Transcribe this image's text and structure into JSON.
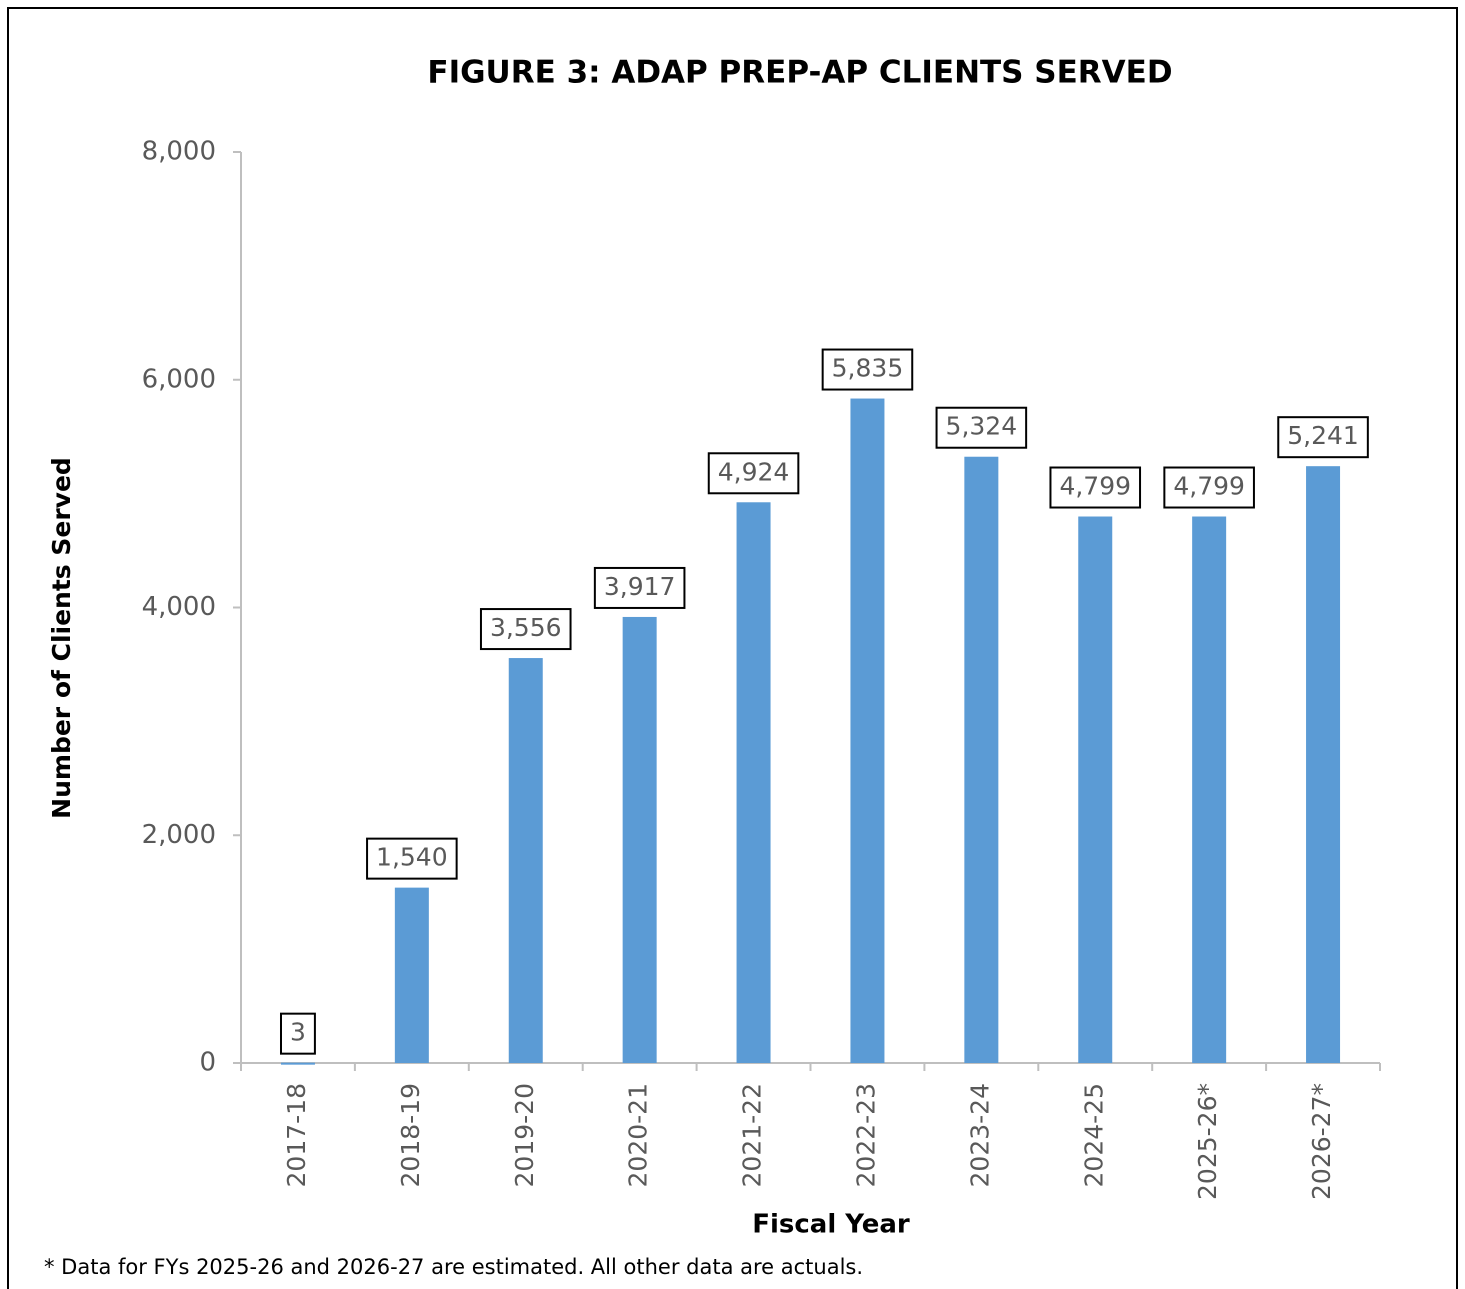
{
  "chart_data": {
    "type": "bar",
    "title": "FIGURE 3: ADAP PREP-AP CLIENTS SERVED",
    "x_label": "Fiscal Year",
    "y_label": "Number of Clients Served",
    "footnote": "* Data for FYs 2025-26 and 2026-27 are estimated.  All other data are actuals.",
    "categories": [
      "2017-18",
      "2018-19",
      "2019-20",
      "2020-21",
      "2021-22",
      "2022-23",
      "2023-24",
      "2024-25",
      "2025-26*",
      "2026-27*"
    ],
    "values": [
      3,
      1540,
      3556,
      3917,
      4924,
      5835,
      5324,
      4799,
      4799,
      5241
    ],
    "value_labels": [
      "3",
      "1,540",
      "3,556",
      "3,917",
      "4,924",
      "5,835",
      "5,324",
      "4,799",
      "4,799",
      "5,241"
    ],
    "color": "#5b9bd5",
    "ylim": [
      0,
      8000
    ],
    "yticks": [
      0,
      {
        "value": 2000,
        "label": "2,000"
      },
      {
        "value": 4000,
        "label": "4,000"
      },
      {
        "value": 6000,
        "label": "6,000"
      },
      {
        "value": 8000,
        "label": "8,000"
      }
    ],
    "grid": false
  }
}
